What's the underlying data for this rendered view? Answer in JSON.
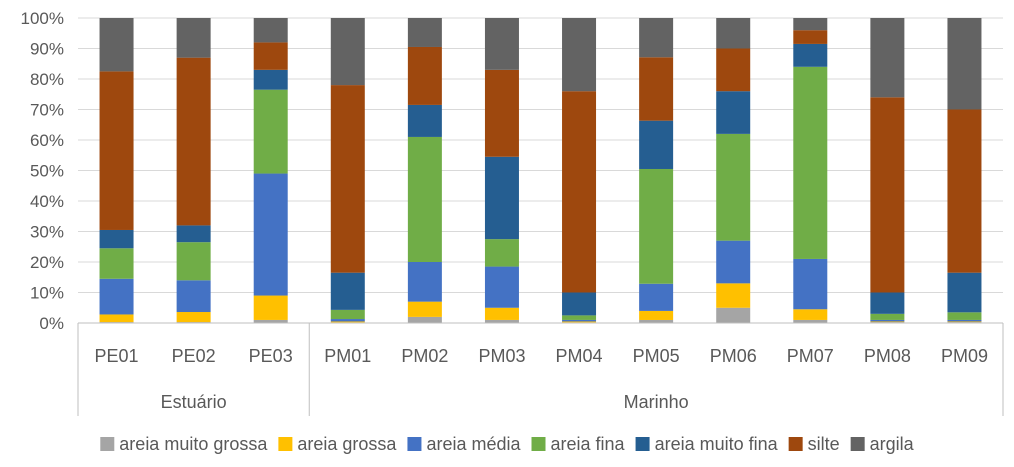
{
  "chart_data": {
    "type": "bar",
    "stacked": "percent",
    "categories": [
      "PE01",
      "PE02",
      "PE03",
      "PM01",
      "PM02",
      "PM03",
      "PM04",
      "PM05",
      "PM06",
      "PM07",
      "PM08",
      "PM09"
    ],
    "groups": [
      {
        "label": "Estuário",
        "categories": [
          "PE01",
          "PE02",
          "PE03"
        ]
      },
      {
        "label": "Marinho",
        "categories": [
          "PM01",
          "PM02",
          "PM03",
          "PM04",
          "PM05",
          "PM06",
          "PM07",
          "PM08",
          "PM09"
        ]
      }
    ],
    "series": [
      {
        "name": "areia muito grossa",
        "color": "#A5A5A5",
        "values": [
          0.3,
          0.3,
          1,
          0.2,
          2,
          1,
          0.2,
          1,
          5,
          1,
          0.3,
          0.3
        ]
      },
      {
        "name": "areia grossa",
        "color": "#FFC000",
        "values": [
          2.5,
          3.3,
          8,
          0.3,
          5,
          4,
          0.3,
          3,
          8,
          3.5,
          0.2,
          0.2
        ]
      },
      {
        "name": "areia média",
        "color": "#4472C4",
        "values": [
          11.7,
          10.4,
          40,
          0.8,
          13,
          13.5,
          0.5,
          9,
          14,
          16.5,
          0.5,
          0.5
        ]
      },
      {
        "name": "areia fina",
        "color": "#70AD47",
        "values": [
          10,
          12.5,
          27.5,
          3,
          41,
          9,
          1.5,
          38,
          35,
          63,
          2,
          2.5
        ]
      },
      {
        "name": "areia muito fina",
        "color": "#255E91",
        "values": [
          6,
          5.5,
          6.5,
          12.2,
          10.5,
          27,
          7.5,
          16,
          14,
          7.5,
          7,
          13
        ]
      },
      {
        "name": "silte",
        "color": "#9E480E",
        "values": [
          52,
          55,
          9,
          61.5,
          19,
          28.5,
          66,
          21,
          14,
          4.5,
          64,
          53.5
        ]
      },
      {
        "name": "argila",
        "color": "#636363",
        "values": [
          17.5,
          13,
          8,
          22,
          9.5,
          17,
          24,
          13,
          10,
          4,
          26,
          30
        ]
      }
    ],
    "ylim": [
      0,
      100
    ],
    "yticks": [
      "0%",
      "10%",
      "20%",
      "30%",
      "40%",
      "50%",
      "60%",
      "70%",
      "80%",
      "90%",
      "100%"
    ],
    "grid": true,
    "legend_position": "bottom",
    "title": "",
    "xlabel": "",
    "ylabel": ""
  }
}
